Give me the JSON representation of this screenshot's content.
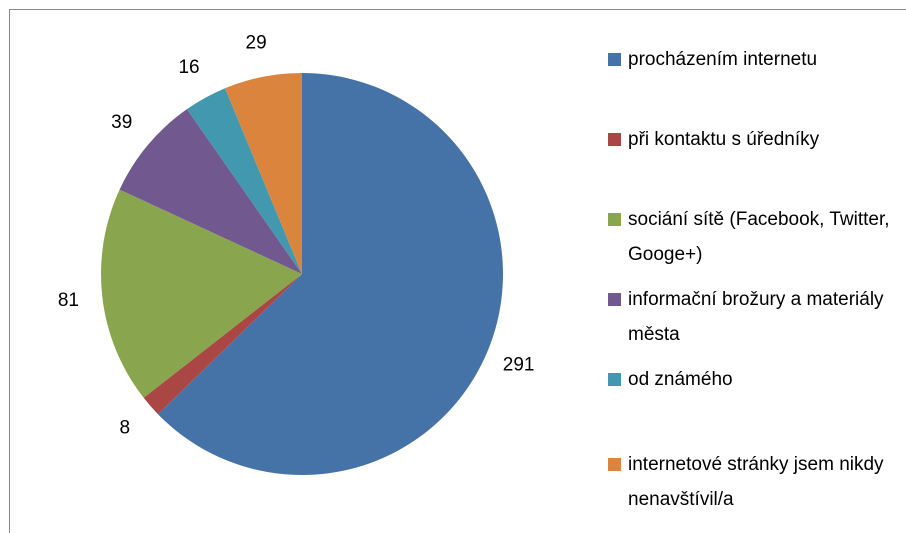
{
  "chart_data": {
    "type": "pie",
    "categories": [
      "procházením internetu",
      "při kontaktu s úředníky",
      "sociání sítě (Facebook, Twitter, Googe+)",
      "informační brožury a materiály města",
      "od známého",
      "internetové stránky jsem nikdy nenavštívil/a"
    ],
    "values": [
      291,
      8,
      81,
      39,
      16,
      29
    ],
    "colors": [
      "#4572a7",
      "#aa4643",
      "#89a54e",
      "#71588f",
      "#4198af",
      "#db843d"
    ]
  }
}
